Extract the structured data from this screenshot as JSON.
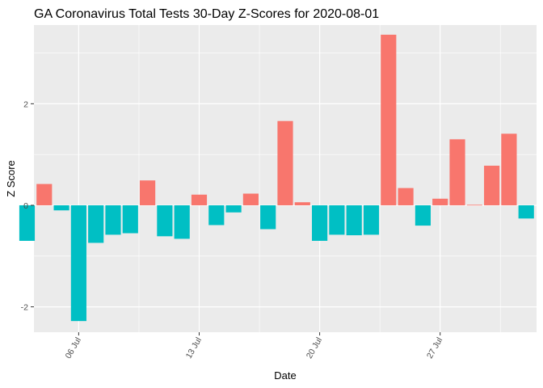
{
  "chart_data": {
    "type": "bar",
    "title": "GA Coronavirus Total Tests 30-Day Z-Scores for 2020-08-01",
    "xlabel": "Date",
    "ylabel": "Z Score",
    "x_tick_labels": [
      "06 Jul",
      "13 Jul",
      "20 Jul",
      "27 Jul"
    ],
    "y_tick_labels": [
      "-2",
      "0",
      "2"
    ],
    "ylim": [
      -2.5,
      3.55
    ],
    "grid": true,
    "legend": "none",
    "colors": {
      "positive": "#F8766D",
      "negative": "#00BFC4",
      "panel": "#EBEBEB",
      "grid": "#FFFFFF"
    },
    "categories": [
      "2020-07-03",
      "2020-07-04",
      "2020-07-05",
      "2020-07-06",
      "2020-07-07",
      "2020-07-08",
      "2020-07-09",
      "2020-07-10",
      "2020-07-11",
      "2020-07-12",
      "2020-07-13",
      "2020-07-14",
      "2020-07-15",
      "2020-07-16",
      "2020-07-17",
      "2020-07-18",
      "2020-07-19",
      "2020-07-20",
      "2020-07-21",
      "2020-07-22",
      "2020-07-23",
      "2020-07-24",
      "2020-07-25",
      "2020-07-26",
      "2020-07-27",
      "2020-07-28",
      "2020-07-29",
      "2020-07-30",
      "2020-07-31",
      "2020-08-01"
    ],
    "values": [
      -0.7,
      0.42,
      -0.1,
      -2.28,
      -0.74,
      -0.58,
      -0.55,
      0.49,
      -0.61,
      -0.66,
      0.21,
      -0.39,
      -0.14,
      0.23,
      -0.47,
      1.66,
      0.06,
      -0.7,
      -0.58,
      -0.59,
      -0.58,
      3.36,
      0.34,
      -0.4,
      0.13,
      1.3,
      0.01,
      0.78,
      1.41,
      -0.26
    ]
  }
}
